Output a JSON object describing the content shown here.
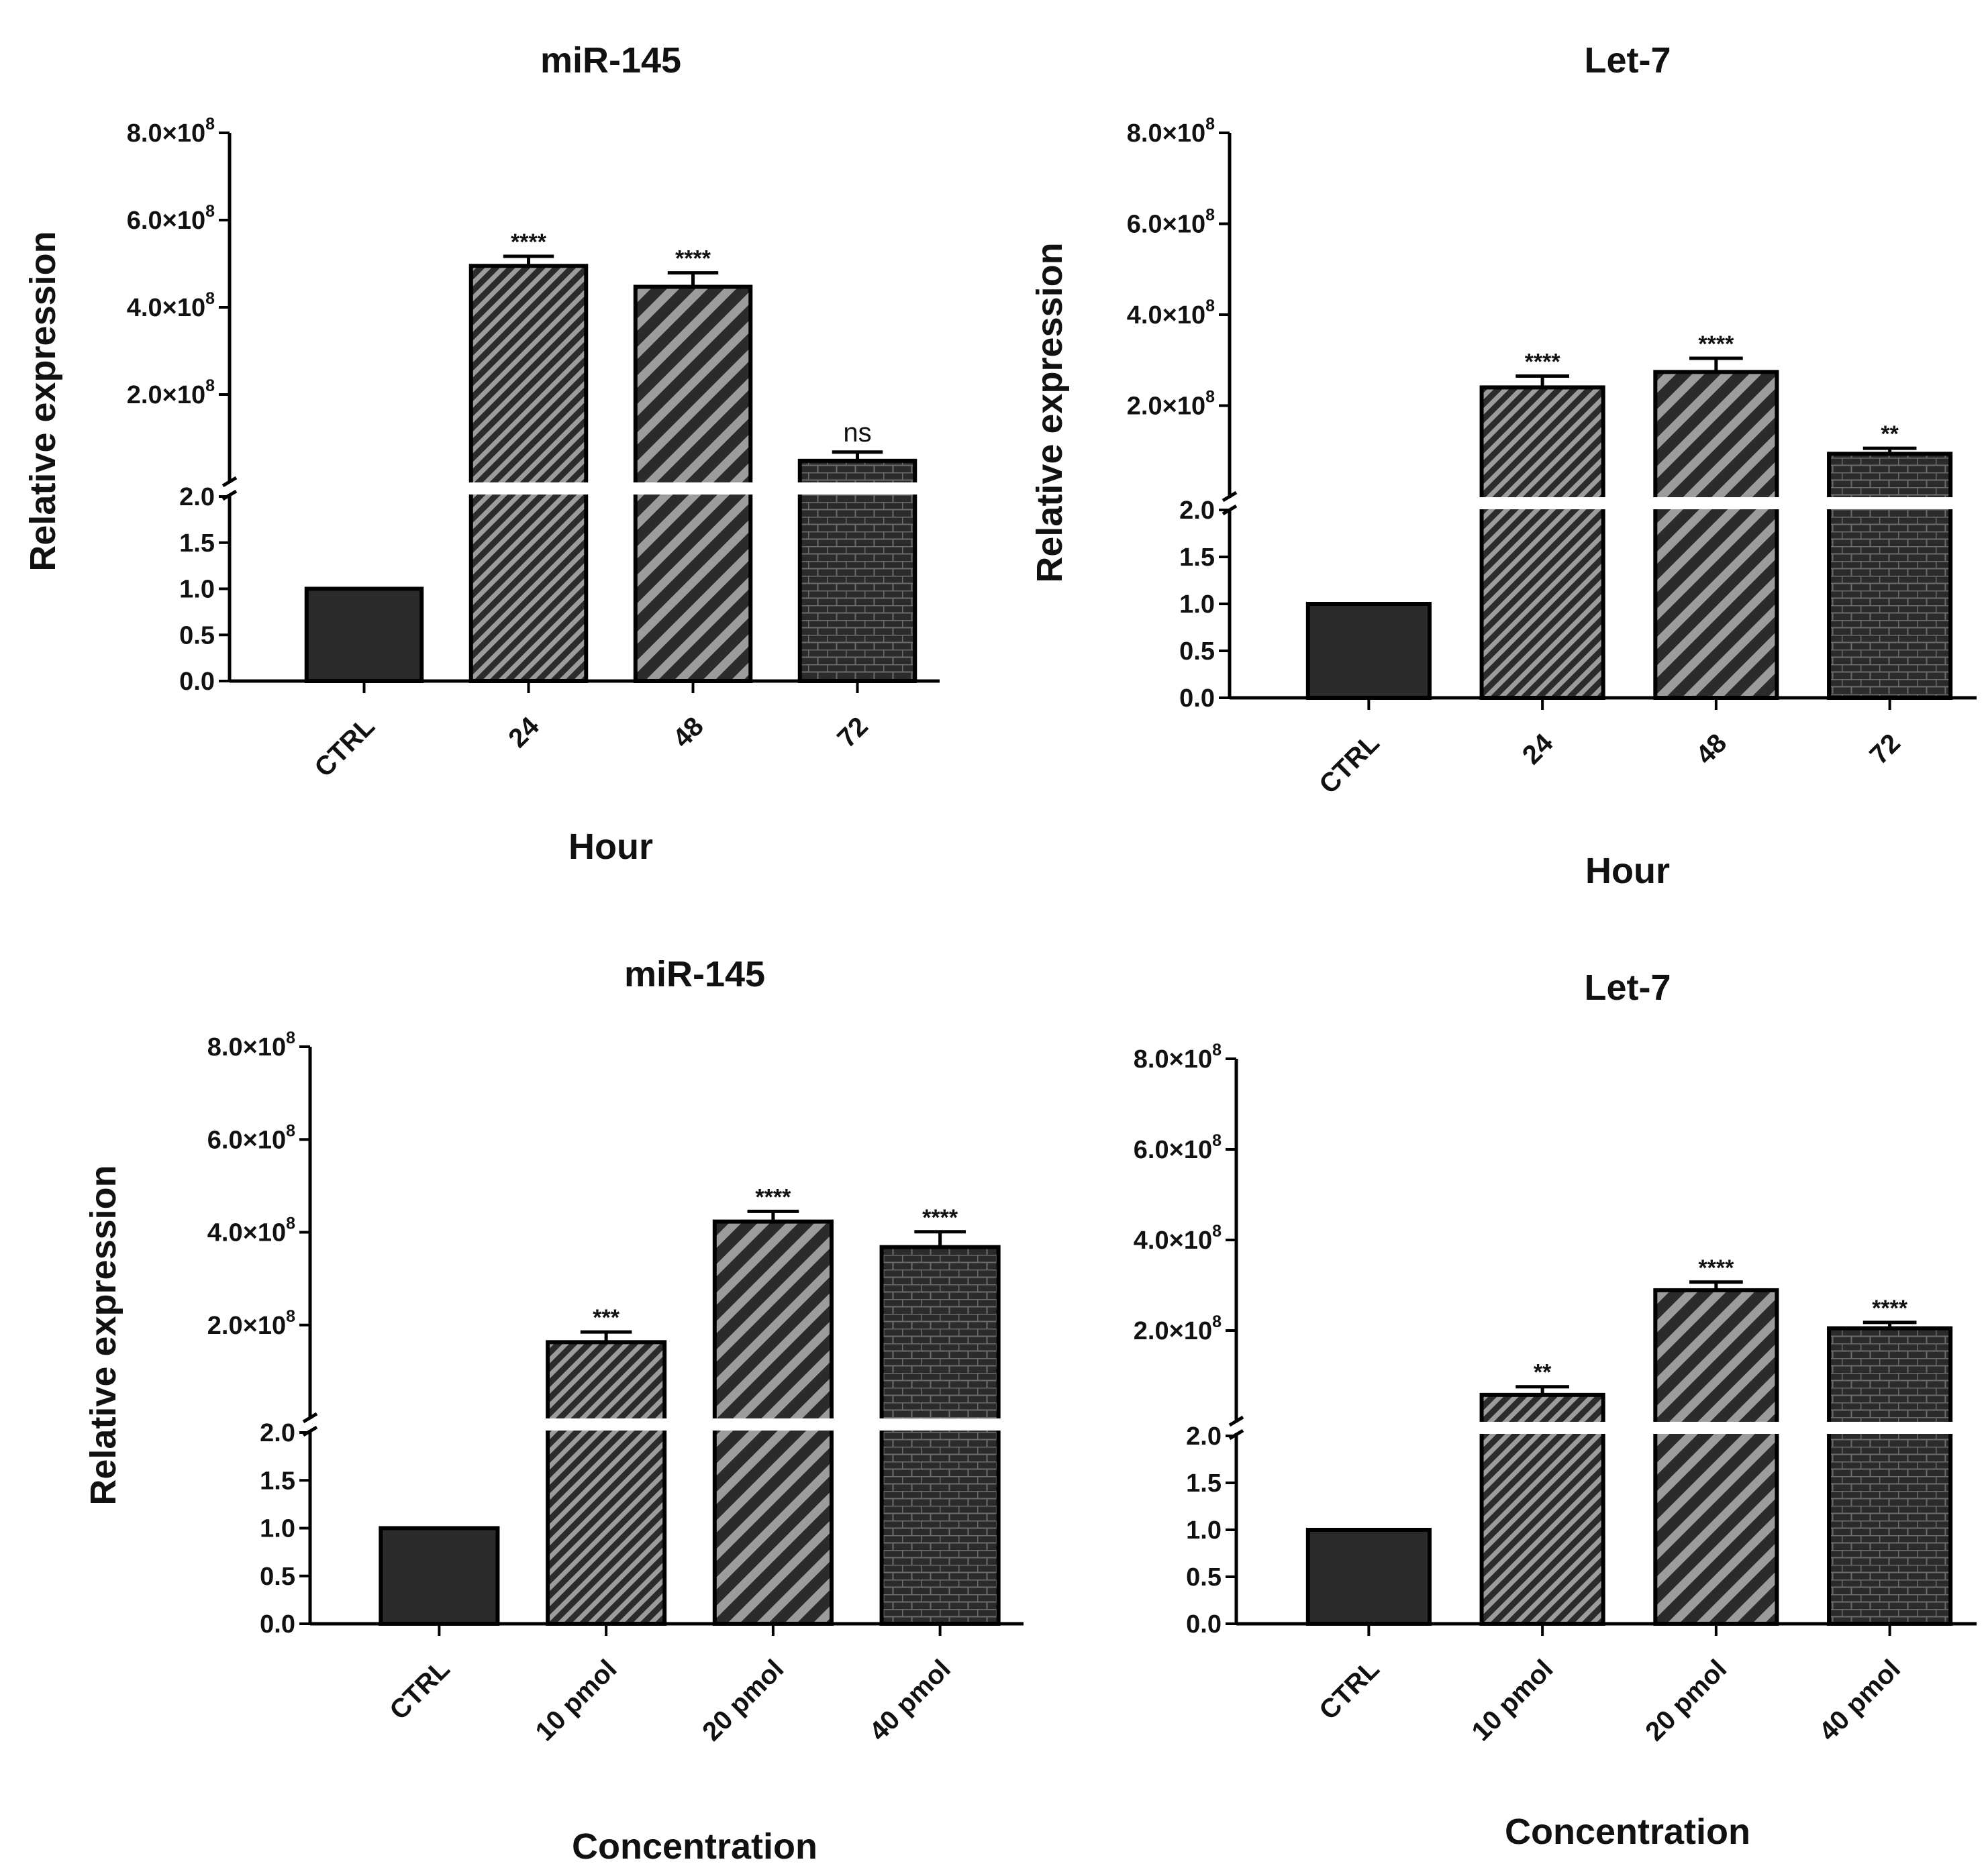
{
  "figure": {
    "colors": {
      "bar_fill": "#2b2b2b",
      "stroke": "#000000",
      "hatch_dark": "#2b2b2b",
      "hatch_light": "#9c9c9c",
      "brick_line": "#6c6c6c",
      "axis_break": "#ffffff"
    }
  },
  "chart_data": [
    {
      "type": "bar",
      "title": "miR-145",
      "xlabel": "Hour",
      "ylabel": "Relative expression",
      "broken_axis": true,
      "lower_segment": {
        "ylim": [
          0,
          2.0
        ],
        "ticks": [
          "0.0",
          "0.5",
          "1.0",
          "1.5",
          "2.0"
        ]
      },
      "upper_segment": {
        "ylim": [
          0,
          800000000
        ],
        "ticks": [
          {
            "mant": "2.0",
            "exp": "8"
          },
          {
            "mant": "4.0",
            "exp": "8"
          },
          {
            "mant": "6.0",
            "exp": "8"
          },
          {
            "mant": "8.0",
            "exp": "8"
          }
        ]
      },
      "categories": [
        "CTRL",
        "24",
        "48",
        "72"
      ],
      "values": [
        1.0,
        495000000,
        447000000,
        48000000
      ],
      "error": [
        0,
        22000000,
        32000000,
        20000000
      ],
      "significance": [
        "",
        "****",
        "****",
        "ns"
      ],
      "patterns": [
        "solid",
        "hatch-fine",
        "hatch-wide",
        "brick"
      ]
    },
    {
      "type": "bar",
      "title": "Let-7",
      "xlabel": "Hour",
      "ylabel": "Relative expression",
      "broken_axis": true,
      "lower_segment": {
        "ylim": [
          0,
          2.0
        ],
        "ticks": [
          "0.0",
          "0.5",
          "1.0",
          "1.5",
          "2.0"
        ]
      },
      "upper_segment": {
        "ylim": [
          0,
          800000000
        ],
        "ticks": [
          {
            "mant": "2.0",
            "exp": "8"
          },
          {
            "mant": "4.0",
            "exp": "8"
          },
          {
            "mant": "6.0",
            "exp": "8"
          },
          {
            "mant": "8.0",
            "exp": "8"
          }
        ]
      },
      "categories": [
        "CTRL",
        "24",
        "48",
        "72"
      ],
      "values": [
        1.0,
        240000000,
        274000000,
        94000000
      ],
      "error": [
        0,
        25000000,
        30000000,
        12000000
      ],
      "significance": [
        "",
        "****",
        "****",
        "**"
      ],
      "patterns": [
        "solid",
        "hatch-fine",
        "hatch-wide",
        "brick"
      ]
    },
    {
      "type": "bar",
      "title": "miR-145",
      "xlabel": "Concentration",
      "ylabel": "Relative expression",
      "broken_axis": true,
      "lower_segment": {
        "ylim": [
          0,
          2.0
        ],
        "ticks": [
          "0.0",
          "0.5",
          "1.0",
          "1.5",
          "2.0"
        ]
      },
      "upper_segment": {
        "ylim": [
          0,
          800000000
        ],
        "ticks": [
          {
            "mant": "2.0",
            "exp": "8"
          },
          {
            "mant": "4.0",
            "exp": "8"
          },
          {
            "mant": "6.0",
            "exp": "8"
          },
          {
            "mant": "8.0",
            "exp": "8"
          }
        ]
      },
      "categories": [
        "CTRL",
        "10 pmol",
        "20 pmol",
        "40 pmol"
      ],
      "values": [
        1.0,
        163000000,
        423000000,
        368000000
      ],
      "error": [
        0,
        22000000,
        22000000,
        33000000
      ],
      "significance": [
        "",
        "***",
        "****",
        "****"
      ],
      "patterns": [
        "solid",
        "hatch-fine",
        "hatch-wide",
        "brick"
      ]
    },
    {
      "type": "bar",
      "title": "Let-7",
      "xlabel": "Concentration",
      "ylabel": "Relative expression",
      "broken_axis": true,
      "lower_segment": {
        "ylim": [
          0,
          2.0
        ],
        "ticks": [
          "0.0",
          "0.5",
          "1.0",
          "1.5",
          "2.0"
        ]
      },
      "upper_segment": {
        "ylim": [
          0,
          800000000
        ],
        "ticks": [
          {
            "mant": "2.0",
            "exp": "8"
          },
          {
            "mant": "4.0",
            "exp": "8"
          },
          {
            "mant": "6.0",
            "exp": "8"
          },
          {
            "mant": "8.0",
            "exp": "8"
          }
        ]
      },
      "categories": [
        "CTRL",
        "10 pmol",
        "20 pmol",
        "40 pmol"
      ],
      "values": [
        1.0,
        58000000,
        289000000,
        205000000
      ],
      "error": [
        0,
        18000000,
        18000000,
        13000000
      ],
      "significance": [
        "",
        "**",
        "****",
        "****"
      ],
      "patterns": [
        "solid",
        "hatch-fine",
        "hatch-wide",
        "brick"
      ]
    }
  ]
}
